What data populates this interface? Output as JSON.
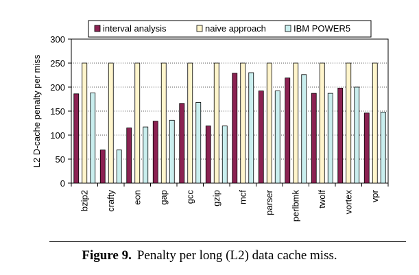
{
  "chart_data": {
    "type": "bar",
    "categories": [
      "bzip2",
      "crafty",
      "eon",
      "gap",
      "gcc",
      "gzip",
      "mcf",
      "parser",
      "perlbmk",
      "twolf",
      "vortex",
      "vpr"
    ],
    "series": [
      {
        "name": "interval analysis",
        "color": "#8b2252",
        "values": [
          186,
          69,
          115,
          129,
          166,
          119,
          229,
          192,
          219,
          187,
          198,
          146
        ]
      },
      {
        "name": "naive approach",
        "color": "#fff5cc",
        "values": [
          250,
          250,
          250,
          250,
          250,
          250,
          250,
          250,
          250,
          250,
          250,
          250
        ]
      },
      {
        "name": "IBM POWER5",
        "color": "#c9eeee",
        "values": [
          188,
          69,
          117,
          131,
          168,
          119,
          230,
          192,
          226,
          187,
          200,
          148
        ]
      }
    ],
    "ylabel": "L2 D-cache penalty per miss",
    "xlabel": "",
    "ylim": [
      0,
      300
    ],
    "yticks": [
      0,
      50,
      100,
      150,
      200,
      250,
      300
    ],
    "grid": true,
    "legend_position": "top"
  },
  "figure": {
    "label": "Figure 9.",
    "caption": "Penalty per long (L2) data cache miss."
  }
}
